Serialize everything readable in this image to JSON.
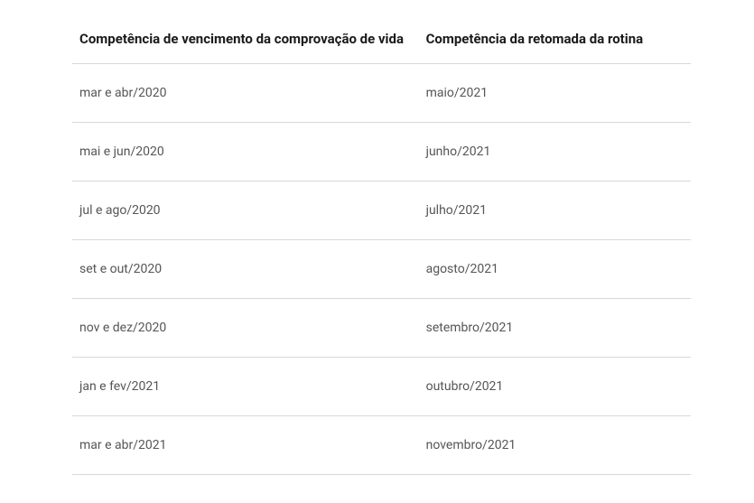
{
  "table": {
    "columns": [
      "Competência de vencimento da comprovação de vida",
      "Competência da retomada da rotina"
    ],
    "rows": [
      [
        "mar e abr/2020",
        "maio/2021"
      ],
      [
        "mai e jun/2020",
        "junho/2021"
      ],
      [
        "jul e ago/2020",
        "julho/2021"
      ],
      [
        "set e out/2020",
        "agosto/2021"
      ],
      [
        "nov e dez/2020",
        "setembro/2021"
      ],
      [
        "jan e fev/2021",
        "outubro/2021"
      ],
      [
        "mar e abr/2021",
        "novembro/2021"
      ]
    ],
    "styling": {
      "background_color": "#ffffff",
      "border_color": "#d8d8d8",
      "header_text_color": "#1a1a1a",
      "cell_text_color": "#555555",
      "header_fontsize": 15,
      "cell_fontsize": 14,
      "header_fontweight": 700,
      "cell_fontweight": 400
    }
  }
}
